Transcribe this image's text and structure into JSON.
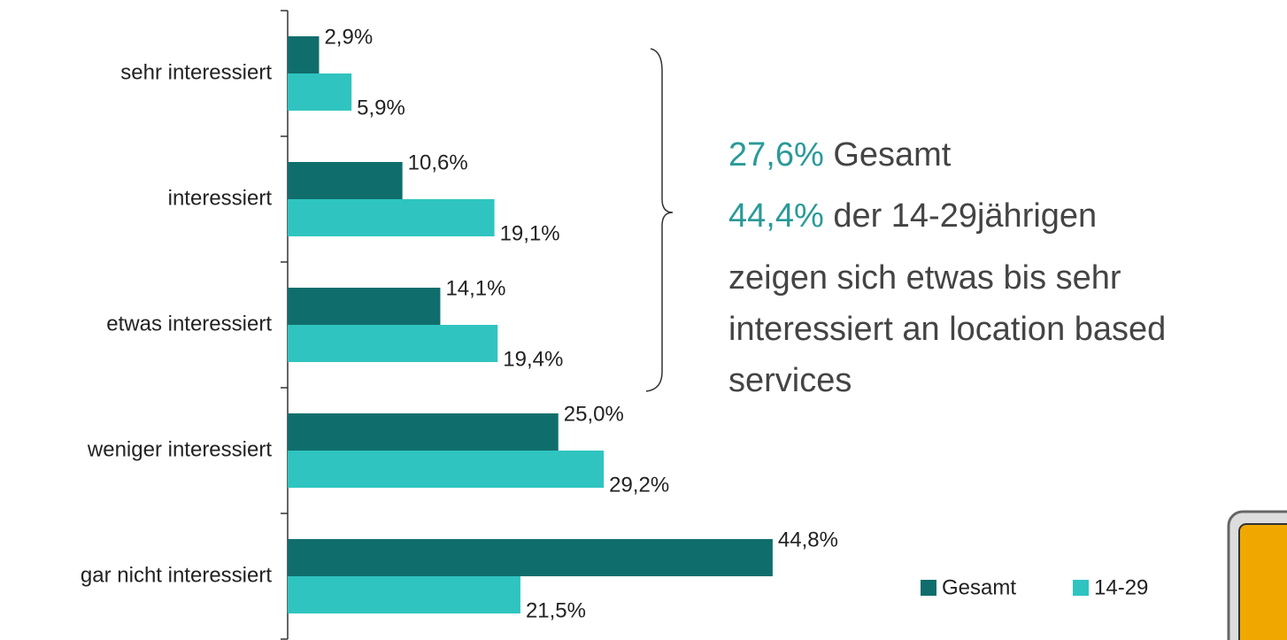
{
  "chart_data": {
    "type": "bar",
    "orientation": "horizontal",
    "categories": [
      "sehr interessiert",
      "interessiert",
      "etwas interessiert",
      "weniger interessiert",
      "gar nicht interessiert"
    ],
    "series": [
      {
        "name": "Gesamt",
        "color": "#0f6e6c",
        "values": [
          2.9,
          10.6,
          14.1,
          25.0,
          44.8
        ],
        "value_labels": [
          "2,9%",
          "10,6%",
          "14,1%",
          "25,0%",
          "44,8%"
        ]
      },
      {
        "name": "14-29",
        "color": "#2fc4c0",
        "values": [
          5.9,
          19.1,
          19.4,
          29.2,
          21.5
        ],
        "value_labels": [
          "5,9%",
          "19,1%",
          "19,4%",
          "29,2%",
          "21,5%"
        ]
      }
    ],
    "annotations": [
      {
        "highlight": "27,6%",
        "text": "Gesamt"
      },
      {
        "highlight": "44,4%",
        "text": "der 14-29jährigen"
      },
      {
        "text": "zeigen sich etwas bis sehr"
      },
      {
        "text": "interessiert an location based"
      },
      {
        "text": "services"
      }
    ],
    "legend": "bottom-right"
  }
}
